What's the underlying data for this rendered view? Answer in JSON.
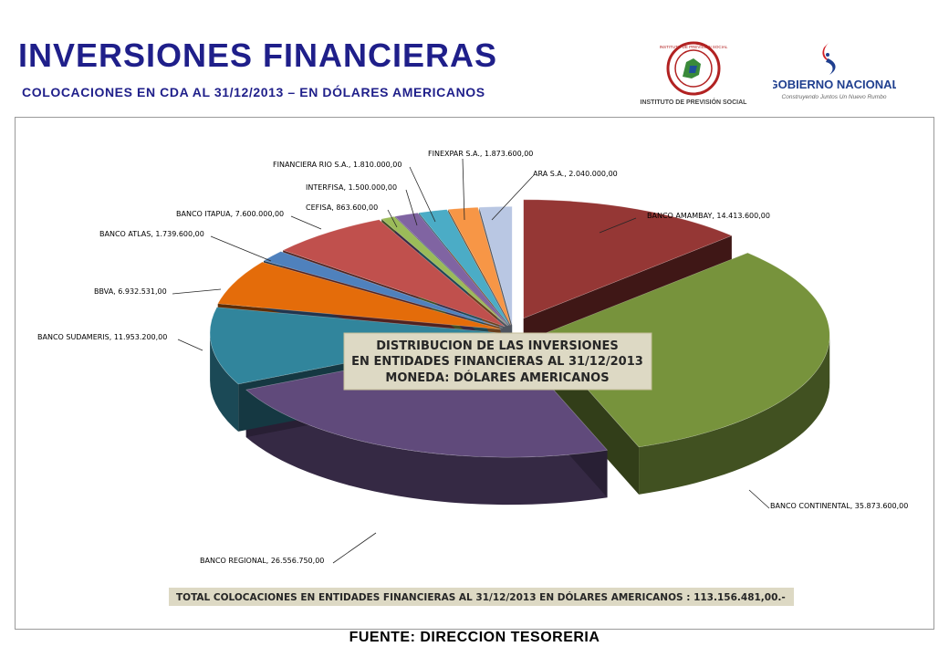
{
  "header": {
    "title": "INVERSIONES FINANCIERAS",
    "subtitle": "COLOCACIONES EN CDA AL 31/12/2013 – EN DÓLARES AMERICANOS"
  },
  "logos": {
    "ips": {
      "icon": "ips-seal-icon",
      "caption": "INSTITUTO DE PREVISIÓN SOCIAL",
      "ring_text": "INSTITUTO DE PREVISIÓN SOCIAL"
    },
    "gobierno": {
      "icon": "flag-swoosh-icon",
      "name": "GOBIERNO NACIONAL",
      "tagline": "Construyendo Juntos Un Nuevo Rumbo"
    }
  },
  "chart_data": {
    "type": "pie",
    "style": "3d-exploded",
    "title_box": [
      "DISTRIBUCION DE LAS INVERSIONES",
      "EN ENTIDADES FINANCIERAS AL 31/12/2013",
      "MONEDA: DÓLARES AMERICANOS"
    ],
    "slices": [
      {
        "name": "BANCO AMAMBAY",
        "value": 14413600.0,
        "label": "BANCO AMAMBAY,  14.413.600,00",
        "color": "#953735"
      },
      {
        "name": "BANCO CONTINENTAL",
        "value": 35873600.0,
        "label": "BANCO CONTINENTAL,  35.873.600,00",
        "color": "#77933c"
      },
      {
        "name": "BANCO REGIONAL",
        "value": 26556750.0,
        "label": "BANCO REGIONAL,  26.556.750,00",
        "color": "#604a7b"
      },
      {
        "name": "BANCO SUDAMERIS",
        "value": 11953200.0,
        "label": "BANCO SUDAMERIS,  11.953.200,00",
        "color": "#31859c"
      },
      {
        "name": "BBVA",
        "value": 6932531.0,
        "label": "BBVA,  6.932.531,00",
        "color": "#e46c0a"
      },
      {
        "name": "BANCO ATLAS",
        "value": 1739600.0,
        "label": "BANCO ATLAS,  1.739.600,00",
        "color": "#4f81bd"
      },
      {
        "name": "BANCO ITAPUA",
        "value": 7600000.0,
        "label": "BANCO ITAPUA,  7.600.000,00",
        "color": "#c0504d"
      },
      {
        "name": "CEFISA",
        "value": 863600.0,
        "label": "CEFISA,  863.600,00",
        "color": "#9bbb59"
      },
      {
        "name": "INTERFISA",
        "value": 1500000.0,
        "label": "INTERFISA,  1.500.000,00",
        "color": "#8064a2"
      },
      {
        "name": "FINANCIERA RIO S.A.",
        "value": 1810000.0,
        "label": "FINANCIERA RIO S.A.,  1.810.000,00",
        "color": "#4bacc6"
      },
      {
        "name": "FINEXPAR S.A.",
        "value": 1873600.0,
        "label": "FINEXPAR S.A.,  1.873.600,00",
        "color": "#f79646"
      },
      {
        "name": "ARA S.A.",
        "value": 2040000.0,
        "label": "ARA S.A.,  2.040.000,00",
        "color": "#b9c7e3"
      }
    ],
    "total_label": "TOTAL COLOCACIONES EN ENTIDADES FINANCIERAS AL 31/12/2013 EN DÓLARES AMERICANOS :  113.156.481,00.-"
  },
  "footer": {
    "source": "FUENTE: DIRECCION TESORERIA"
  }
}
